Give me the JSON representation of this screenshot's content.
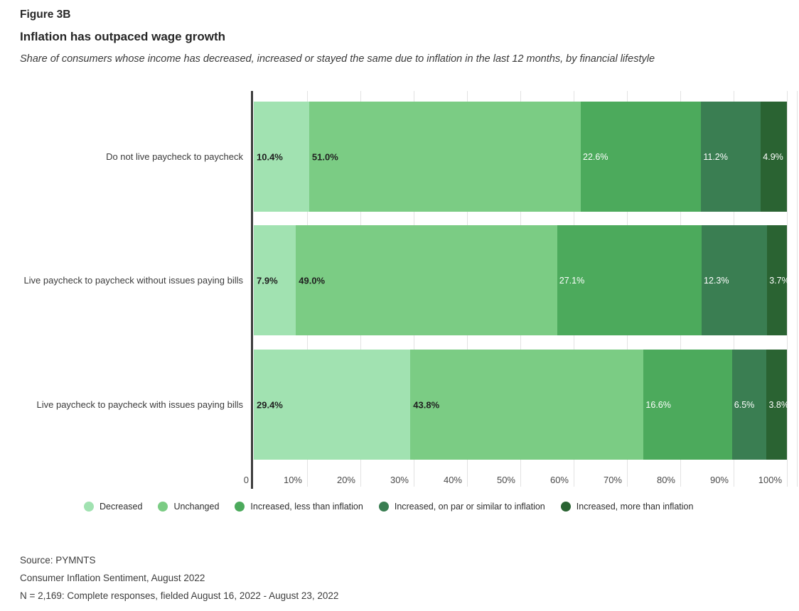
{
  "figure": {
    "label": "Figure 3B",
    "title": "Inflation has outpaced wage growth",
    "subtitle": "Share of consumers whose income has decreased, increased or stayed the same due to inflation in the last 12 months, by financial lifestyle"
  },
  "chart_data": {
    "type": "bar",
    "orientation": "horizontal",
    "stacked": true,
    "grid": true,
    "legend_position": "bottom",
    "xlim": [
      0,
      100
    ],
    "x_tick_labels": [
      "0",
      "10%",
      "20%",
      "30%",
      "40%",
      "50%",
      "60%",
      "70%",
      "80%",
      "90%",
      "100%"
    ],
    "categories": [
      "Do not live paycheck to paycheck",
      "Live paycheck to paycheck without issues paying bills",
      "Live paycheck to paycheck with issues paying bills"
    ],
    "series": [
      {
        "name": "Decreased",
        "color": "#a1e2b1",
        "label_text": "dark",
        "values": [
          10.4,
          7.9,
          29.4
        ]
      },
      {
        "name": "Unchanged",
        "color": "#7bcc84",
        "label_text": "dark",
        "values": [
          51.0,
          49.0,
          43.8
        ]
      },
      {
        "name": "Increased, less than inflation",
        "color": "#4caa5c",
        "label_text": "light",
        "values": [
          22.6,
          27.1,
          16.6
        ]
      },
      {
        "name": "Increased, on par or similar to inflation",
        "color": "#3a7e52",
        "label_text": "light",
        "values": [
          11.2,
          12.3,
          6.5
        ]
      },
      {
        "name": "Increased, more than inflation",
        "color": "#2a6332",
        "label_text": "light",
        "values": [
          4.9,
          3.7,
          3.8
        ]
      }
    ],
    "value_label_colors": {
      "dark": "#1f1f1f",
      "light": "#ffffff"
    },
    "axis_color": "#3d3d3d",
    "gridline_color": "#e2e2e2"
  },
  "footer": {
    "source_lines": [
      "Source: PYMNTS",
      "Consumer Inflation Sentiment, August 2022",
      "N = 2,169: Complete responses, fielded August 16, 2022 - August 23, 2022"
    ]
  }
}
